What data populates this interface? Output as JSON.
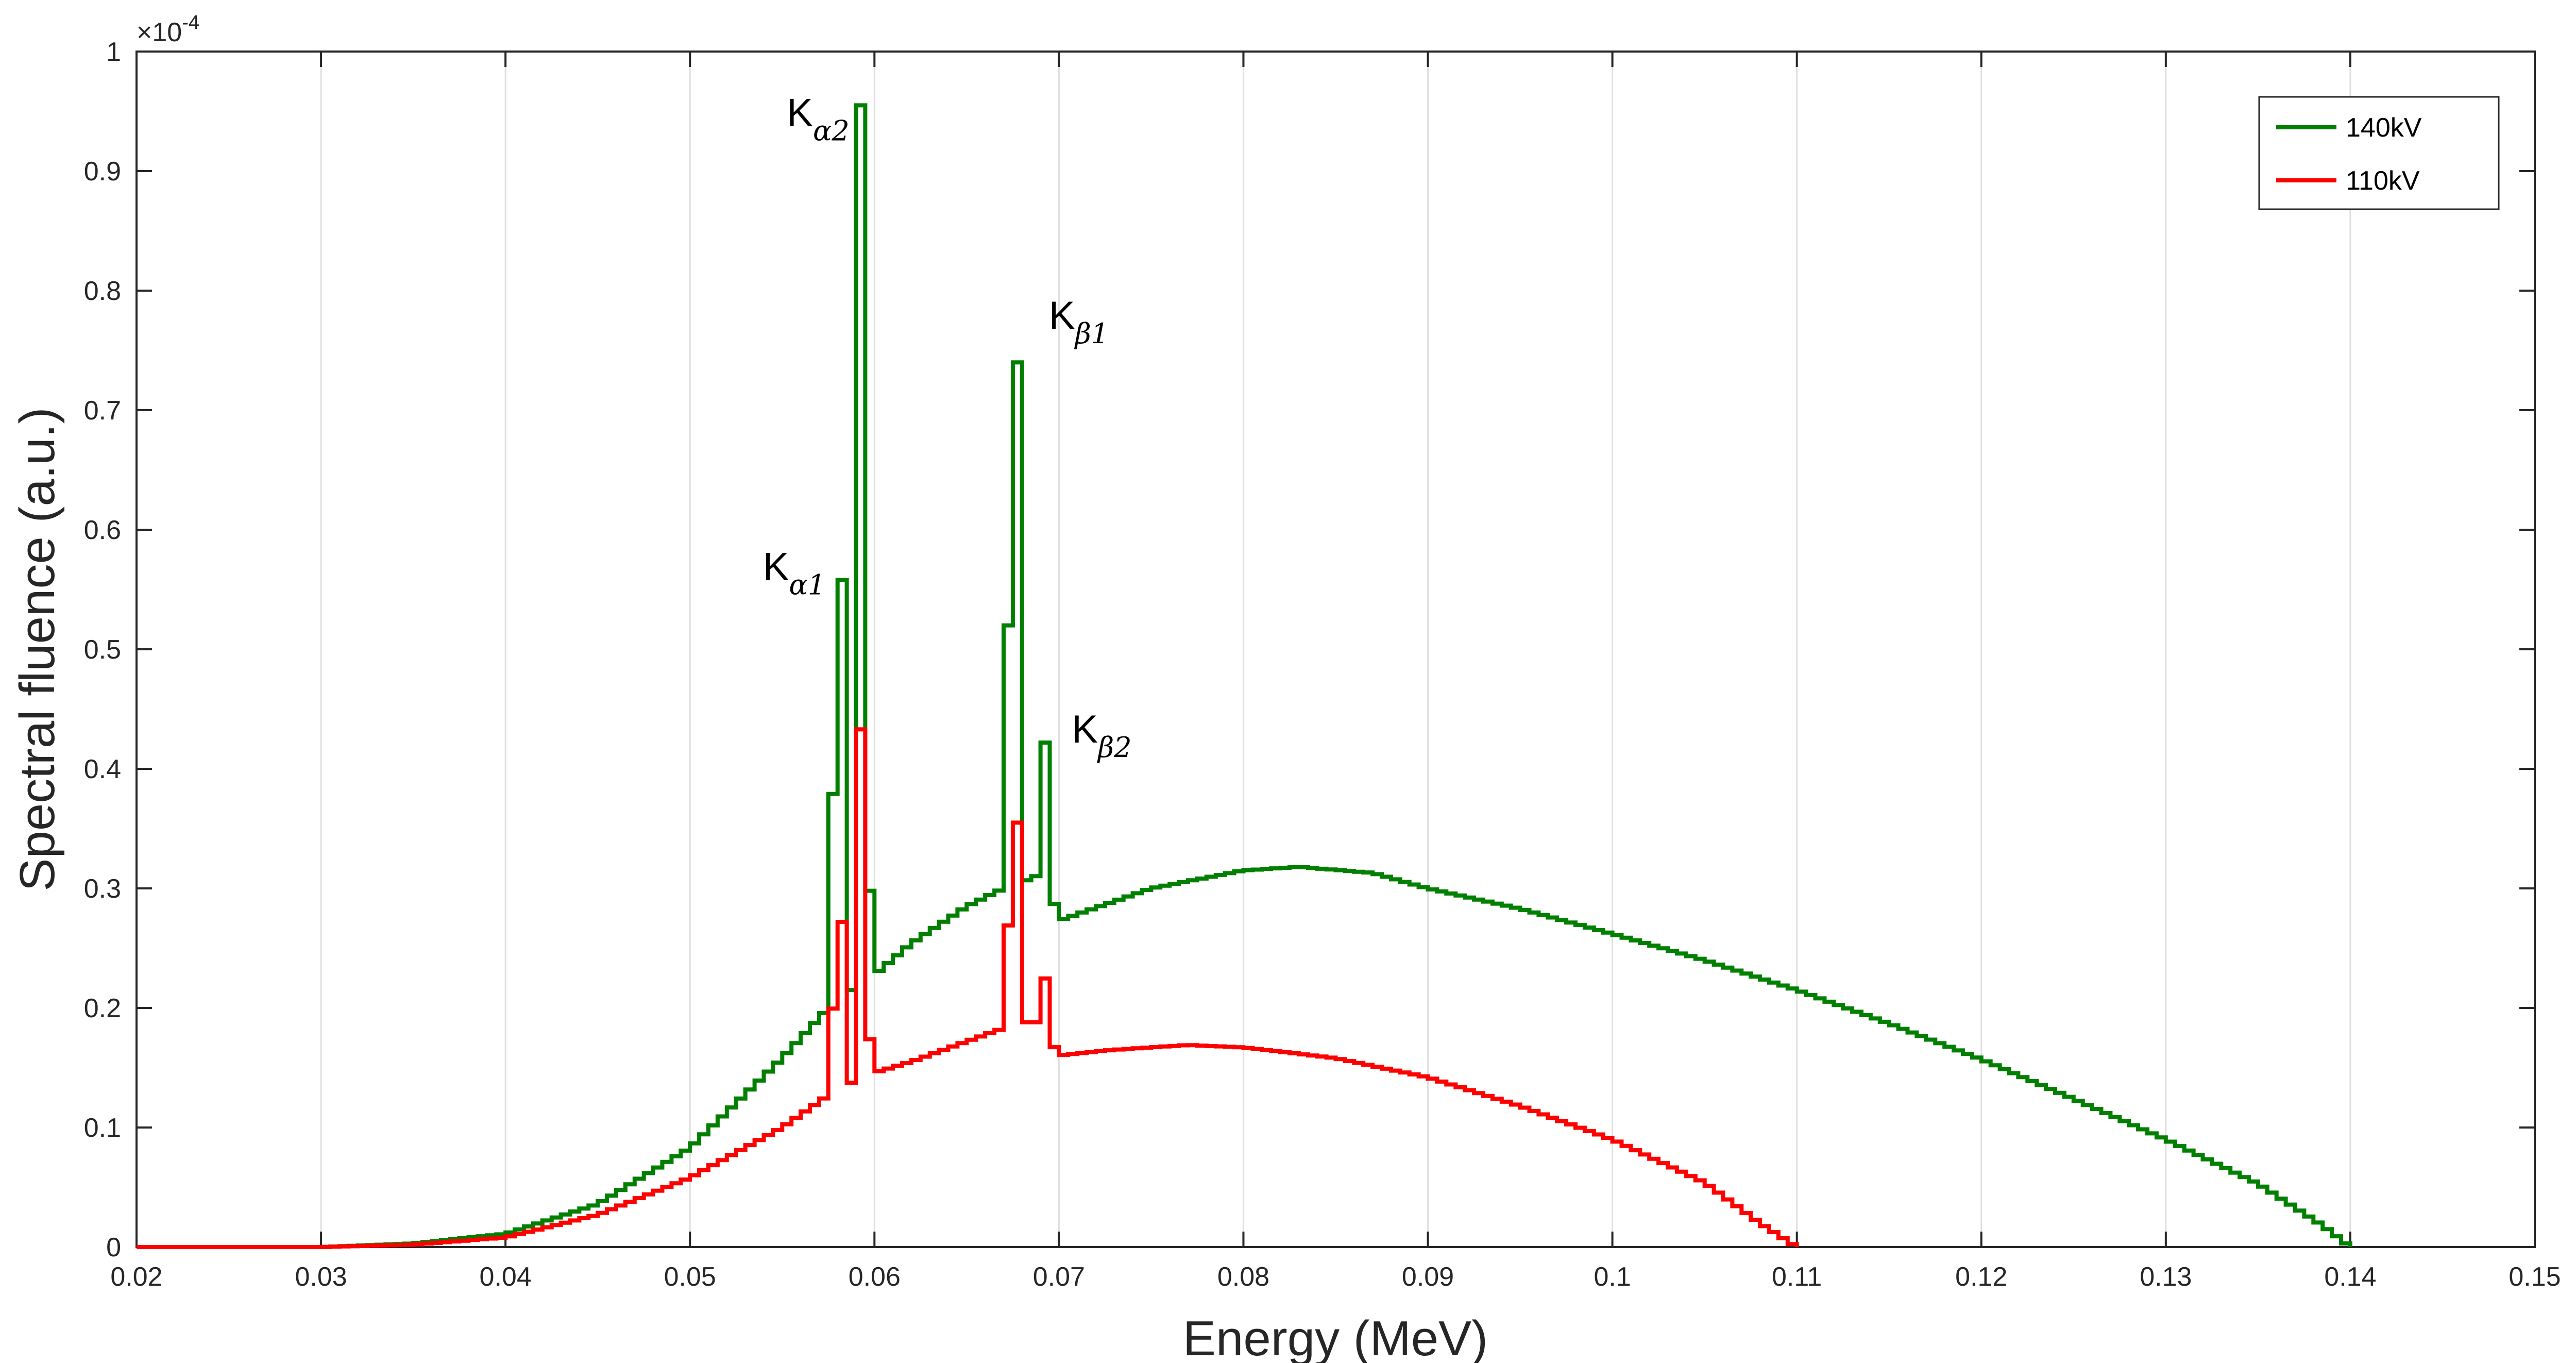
{
  "chart_data": {
    "type": "line",
    "style": "stairs",
    "xlabel": "Energy (MeV)",
    "ylabel": "Spectral fluence (a.u.)",
    "y_multiplier": "×10",
    "y_multiplier_exp": "-4",
    "xlim": [
      0.02,
      0.15
    ],
    "ylim": [
      0,
      1
    ],
    "x_ticks": [
      "0.02",
      "0.03",
      "0.04",
      "0.05",
      "0.06",
      "0.07",
      "0.08",
      "0.09",
      "0.1",
      "0.11",
      "0.12",
      "0.13",
      "0.14",
      "0.15"
    ],
    "y_ticks": [
      "0",
      "0.1",
      "0.2",
      "0.3",
      "0.4",
      "0.5",
      "0.6",
      "0.7",
      "0.8",
      "0.9",
      "1"
    ],
    "grid": "vertical",
    "legend_position": "top-right",
    "series": [
      {
        "name": "140kV",
        "color": "#007f00",
        "points": [
          [
            0.02,
            0
          ],
          [
            0.03,
            0
          ],
          [
            0.035,
            0.003
          ],
          [
            0.04,
            0.011
          ],
          [
            0.045,
            0.036
          ],
          [
            0.05,
            0.083
          ],
          [
            0.055,
            0.158
          ],
          [
            0.0575,
            0.2
          ],
          [
            0.058,
            0.558
          ],
          [
            0.0585,
            0.215
          ],
          [
            0.059,
            0.215
          ],
          [
            0.0593,
            0.955
          ],
          [
            0.0598,
            0.225
          ],
          [
            0.062,
            0.254
          ],
          [
            0.065,
            0.285
          ],
          [
            0.067,
            0.3
          ],
          [
            0.0675,
            0.74
          ],
          [
            0.068,
            0.305
          ],
          [
            0.069,
            0.312
          ],
          [
            0.0693,
            0.422
          ],
          [
            0.0698,
            0.272
          ],
          [
            0.075,
            0.3
          ],
          [
            0.08,
            0.315
          ],
          [
            0.083,
            0.318
          ],
          [
            0.087,
            0.313
          ],
          [
            0.09,
            0.3
          ],
          [
            0.095,
            0.283
          ],
          [
            0.1,
            0.262
          ],
          [
            0.105,
            0.24
          ],
          [
            0.11,
            0.215
          ],
          [
            0.115,
            0.187
          ],
          [
            0.12,
            0.157
          ],
          [
            0.125,
            0.124
          ],
          [
            0.13,
            0.09
          ],
          [
            0.135,
            0.053
          ],
          [
            0.1385,
            0.018
          ],
          [
            0.14,
            0
          ]
        ]
      },
      {
        "name": "110kV",
        "color": "#ff0000",
        "points": [
          [
            0.02,
            0
          ],
          [
            0.03,
            0
          ],
          [
            0.035,
            0.002
          ],
          [
            0.04,
            0.008
          ],
          [
            0.045,
            0.027
          ],
          [
            0.05,
            0.058
          ],
          [
            0.055,
            0.1
          ],
          [
            0.0575,
            0.127
          ],
          [
            0.058,
            0.272
          ],
          [
            0.0585,
            0.137
          ],
          [
            0.059,
            0.138
          ],
          [
            0.0593,
            0.433
          ],
          [
            0.0598,
            0.145
          ],
          [
            0.062,
            0.155
          ],
          [
            0.065,
            0.172
          ],
          [
            0.067,
            0.183
          ],
          [
            0.0675,
            0.355
          ],
          [
            0.068,
            0.188
          ],
          [
            0.069,
            0.188
          ],
          [
            0.0693,
            0.232
          ],
          [
            0.0698,
            0.16
          ],
          [
            0.073,
            0.165
          ],
          [
            0.077,
            0.169
          ],
          [
            0.08,
            0.167
          ],
          [
            0.085,
            0.158
          ],
          [
            0.09,
            0.142
          ],
          [
            0.095,
            0.118
          ],
          [
            0.1,
            0.09
          ],
          [
            0.105,
            0.054
          ],
          [
            0.108,
            0.02
          ],
          [
            0.11,
            0
          ]
        ]
      }
    ],
    "annotations": [
      {
        "main": "K",
        "sub": "α2",
        "x": 0.0593,
        "y": 0.955
      },
      {
        "main": "K",
        "sub": "α1",
        "x": 0.058,
        "y": 0.558
      },
      {
        "main": "K",
        "sub": "β1",
        "x": 0.0675,
        "y": 0.74
      },
      {
        "main": "K",
        "sub": "β2",
        "x": 0.0693,
        "y": 0.422
      }
    ]
  }
}
